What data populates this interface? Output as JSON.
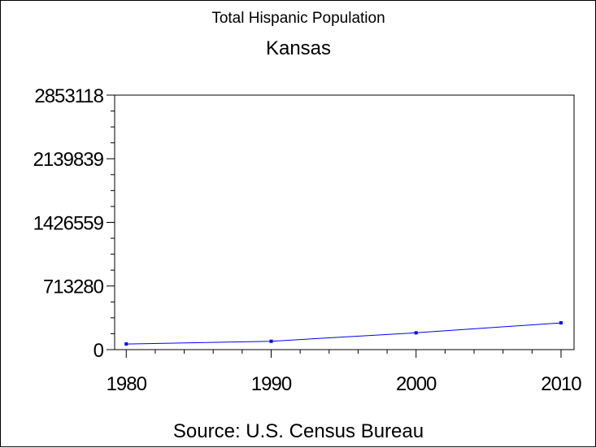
{
  "chart_data": {
    "type": "line",
    "title": "Total Hispanic Population",
    "subtitle": "Kansas",
    "source": "Source: U.S. Census Bureau",
    "x": [
      1980,
      1990,
      2000,
      2010
    ],
    "x_ticks": [
      "1980",
      "1990",
      "2000",
      "2010"
    ],
    "series": [
      {
        "values": [
          63339,
          93670,
          188252,
          300042
        ],
        "color": "#0000ff"
      }
    ],
    "y_ticks": [
      "0",
      "713280",
      "1426559",
      "2139839",
      "2853118"
    ],
    "y_tick_values": [
      0,
      713280,
      1426559,
      2139839,
      2853118
    ],
    "ylim": [
      0,
      2853118
    ],
    "xlim": [
      1979.2,
      2010.9
    ],
    "grid": false,
    "axis_color": "#000000",
    "line_color": "#0000ff"
  }
}
